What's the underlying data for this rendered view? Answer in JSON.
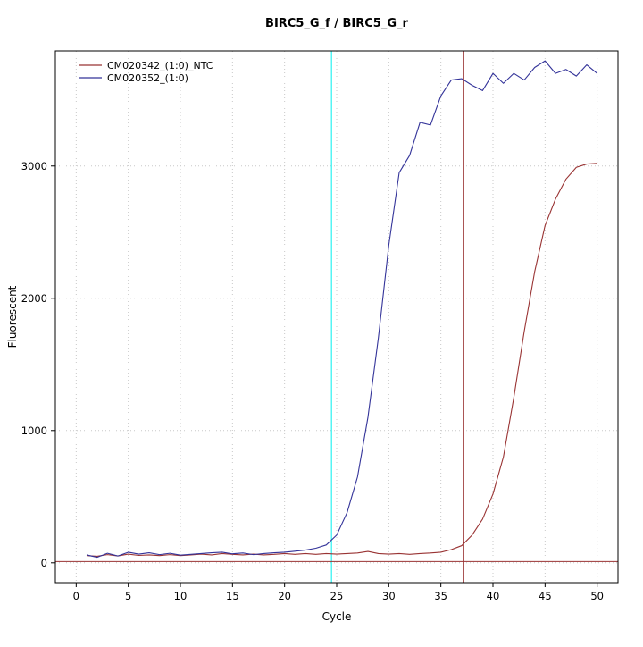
{
  "chart_data": {
    "type": "line",
    "title": "BIRC5_G_f / BIRC5_G_r",
    "xlabel": "Cycle",
    "ylabel": "Fluorescent",
    "xlim": [
      -2,
      52
    ],
    "ylim": [
      -150,
      3870
    ],
    "x_ticks": [
      0,
      5,
      10,
      15,
      20,
      25,
      30,
      35,
      40,
      45,
      50
    ],
    "y_ticks": [
      0,
      1000,
      2000,
      3000
    ],
    "grid": true,
    "grid_color": "#c8c8c8",
    "legend_position": "top-left",
    "x": [
      1,
      2,
      3,
      4,
      5,
      6,
      7,
      8,
      9,
      10,
      11,
      12,
      13,
      14,
      15,
      16,
      17,
      18,
      19,
      20,
      21,
      22,
      23,
      24,
      25,
      26,
      27,
      28,
      29,
      30,
      31,
      32,
      33,
      34,
      35,
      36,
      37,
      38,
      39,
      40,
      41,
      42,
      43,
      44,
      45,
      46,
      47,
      48,
      49,
      50
    ],
    "series": [
      {
        "name": "CM020342_(1:0)_NTC",
        "color": "#993333",
        "values": [
          55,
          50,
          62,
          52,
          66,
          56,
          60,
          55,
          62,
          55,
          60,
          66,
          60,
          70,
          64,
          60,
          66,
          60,
          64,
          70,
          64,
          70,
          64,
          70,
          66,
          70,
          74,
          86,
          70,
          66,
          70,
          64,
          70,
          74,
          80,
          100,
          130,
          210,
          330,
          520,
          800,
          1250,
          1750,
          2200,
          2550,
          2750,
          2900,
          2990,
          3015,
          3020
        ]
      },
      {
        "name": "CM020352_(1:0)",
        "color": "#333399",
        "values": [
          60,
          42,
          72,
          52,
          80,
          66,
          76,
          62,
          72,
          58,
          64,
          70,
          76,
          80,
          68,
          74,
          62,
          70,
          76,
          80,
          88,
          96,
          110,
          135,
          210,
          380,
          650,
          1100,
          1700,
          2400,
          2950,
          3080,
          3330,
          3310,
          3530,
          3650,
          3660,
          3610,
          3570,
          3700,
          3625,
          3700,
          3650,
          3745,
          3795,
          3700,
          3730,
          3680,
          3765,
          3700
        ]
      }
    ],
    "vlines": [
      {
        "x": 24.5,
        "color": "#00eeee",
        "name": "threshold-cycle-line-cyan"
      },
      {
        "x": 37.2,
        "color": "#993333",
        "name": "threshold-cycle-line-red"
      }
    ],
    "hlines": [
      {
        "y": 10,
        "color": "#993333",
        "name": "fluorescence-threshold-line"
      }
    ]
  }
}
